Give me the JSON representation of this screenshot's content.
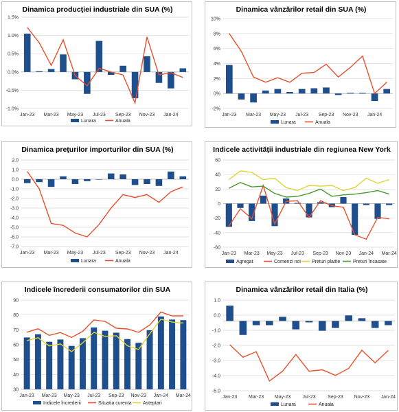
{
  "colors": {
    "bar": "#1f4e8c",
    "red": "#e8502d",
    "green": "#4a9a2e",
    "yellow": "#e4d23a",
    "grid": "#d9d9d9"
  },
  "chart_data": [
    {
      "type": "bar",
      "title": "Dinamica producţiei industriale din SUA (%)",
      "categories": [
        "Jan-23",
        "Feb-23",
        "Mar-23",
        "Apr-23",
        "May-23",
        "Jun-23",
        "Jul-23",
        "Aug-23",
        "Sep-23",
        "Oct-23",
        "Nov-23",
        "Dec-23",
        "Jan-24",
        "Feb-24"
      ],
      "x_tick_labels": [
        "Jan-23",
        "Mar-23",
        "May-23",
        "Jul-23",
        "Sep-23",
        "Nov-23",
        "Jan-24"
      ],
      "ylim": [
        -1.0,
        1.5
      ],
      "y_ticks": [
        "-1.0%",
        "-0.5%",
        "0.0%",
        "0.5%",
        "1.0%",
        "1.5%"
      ],
      "legend": "bottom",
      "series": [
        {
          "name": "Lunara",
          "kind": "bar",
          "color": "bar",
          "values": [
            1.05,
            0.02,
            0.08,
            0.48,
            -0.2,
            -0.6,
            0.85,
            -0.08,
            0.17,
            -0.72,
            0.43,
            -0.3,
            -0.45,
            0.1
          ]
        },
        {
          "name": "Anuala",
          "kind": "line",
          "color": "red",
          "values": [
            1.22,
            0.8,
            0.18,
            0.88,
            -0.1,
            -0.38,
            0.1,
            0.0,
            -0.08,
            -0.85,
            0.96,
            -0.08,
            -0.02,
            -0.15
          ]
        }
      ]
    },
    {
      "type": "bar",
      "title": "Dinamica vânzărilor retail din SUA (%)",
      "categories": [
        "Jan-23",
        "Feb-23",
        "Mar-23",
        "Apr-23",
        "May-23",
        "Jun-23",
        "Jul-23",
        "Aug-23",
        "Sep-23",
        "Oct-23",
        "Nov-23",
        "Dec-23",
        "Jan-24",
        "Feb-24"
      ],
      "x_tick_labels": [
        "Jan-23",
        "Mar-23",
        "May-23",
        "Jul-23",
        "Sep-23",
        "Nov-23",
        "Jan-24"
      ],
      "ylim": [
        -2,
        10
      ],
      "y_ticks": [
        "-2%",
        "0%",
        "2%",
        "4%",
        "6%",
        "8%",
        "10%"
      ],
      "legend": "bottom",
      "series": [
        {
          "name": "Lunara",
          "kind": "bar",
          "color": "bar",
          "values": [
            3.8,
            -0.8,
            -1.2,
            0.4,
            0.6,
            0.2,
            0.6,
            0.7,
            0.8,
            -0.2,
            0.1,
            0.1,
            -1.0,
            0.6
          ]
        },
        {
          "name": "Anuala",
          "kind": "line",
          "color": "red",
          "values": [
            8.0,
            5.6,
            2.2,
            1.5,
            2.1,
            1.5,
            2.7,
            2.8,
            3.9,
            2.2,
            3.5,
            5.0,
            0.0,
            1.5
          ]
        }
      ]
    },
    {
      "type": "bar",
      "title": "Dinamica preţurilor importurilor din SUA (%)",
      "categories": [
        "Jan-23",
        "Feb-23",
        "Mar-23",
        "Apr-23",
        "May-23",
        "Jun-23",
        "Jul-23",
        "Aug-23",
        "Sep-23",
        "Oct-23",
        "Nov-23",
        "Dec-23",
        "Jan-24",
        "Feb-24"
      ],
      "x_tick_labels": [
        "Jan-23",
        "Mar-23",
        "May-23",
        "Jul-23",
        "Sep-23",
        "Nov-23",
        "Jan-24"
      ],
      "ylim": [
        -7.0,
        2.0
      ],
      "y_ticks": [
        "-7.0",
        "-6.0",
        "-5.0",
        "-4.0",
        "-3.0",
        "-2.0",
        "-1.0",
        "0.0",
        "1.0",
        "2.0"
      ],
      "legend": "bottom",
      "series": [
        {
          "name": "Lunara",
          "kind": "bar",
          "color": "bar",
          "values": [
            -0.4,
            -0.3,
            -0.8,
            0.3,
            -0.5,
            -0.2,
            0.0,
            0.6,
            0.5,
            -0.6,
            -0.5,
            -0.7,
            0.8,
            0.3
          ]
        },
        {
          "name": "Anuala",
          "kind": "line",
          "color": "red",
          "values": [
            0.8,
            -1.0,
            -4.6,
            -4.8,
            -5.6,
            -6.0,
            -4.7,
            -3.0,
            -1.6,
            -1.9,
            -1.6,
            -2.4,
            -1.3,
            -0.8
          ]
        }
      ]
    },
    {
      "type": "bar",
      "title": "Indicele activităţii industriale din regiunea New York",
      "categories": [
        "Jan-23",
        "Feb-23",
        "Mar-23",
        "Apr-23",
        "May-23",
        "Jun-23",
        "Jul-23",
        "Aug-23",
        "Sep-23",
        "Oct-23",
        "Nov-23",
        "Dec-23",
        "Jan-24",
        "Feb-24",
        "Mar-24"
      ],
      "x_tick_labels": [
        "Jan-23",
        "Mar-23",
        "May-23",
        "Jul-23",
        "Sep-23",
        "Nov-23",
        "Jan-24",
        "Mar-24"
      ],
      "ylim": [
        -60,
        60
      ],
      "y_ticks": [
        "-60",
        "-40",
        "-20",
        "0",
        "20",
        "40",
        "60"
      ],
      "legend": "bottom",
      "series": [
        {
          "name": "Agregat",
          "kind": "bar",
          "color": "bar",
          "values": [
            -32,
            -6,
            -24,
            11,
            -31,
            7,
            1,
            -19,
            2,
            -5,
            9,
            -43,
            -2,
            -21,
            -2
          ]
        },
        {
          "name": "Comenzi noi",
          "kind": "line",
          "color": "red",
          "values": [
            -31,
            -7,
            -21,
            25,
            -28,
            3,
            4,
            -19,
            4,
            -3,
            -5,
            -43,
            -49,
            -19,
            -21
          ]
        },
        {
          "name": "Preturi platite",
          "kind": "line",
          "color": "yellow",
          "values": [
            33,
            45,
            43,
            33,
            35,
            22,
            18,
            25,
            24,
            25,
            18,
            22,
            35,
            28,
            33
          ]
        },
        {
          "name": "Preturi încasate",
          "kind": "line",
          "color": "green",
          "values": [
            21,
            29,
            23,
            24,
            14,
            9,
            10,
            14,
            20,
            10,
            12,
            13,
            15,
            18,
            13
          ]
        }
      ]
    },
    {
      "type": "bar",
      "title": "Indicele încrederii consumatorilor din SUA",
      "categories": [
        "Jan-23",
        "Feb-23",
        "Mar-23",
        "Apr-23",
        "May-23",
        "Jun-23",
        "Jul-23",
        "Aug-23",
        "Sep-23",
        "Oct-23",
        "Nov-23",
        "Dec-23",
        "Jan-24",
        "Feb-24",
        "Mar-24"
      ],
      "x_tick_labels": [
        "Jan-23",
        "Mar-23",
        "May-23",
        "Jul-23",
        "Sep-23",
        "Nov-23",
        "Jan-24",
        "Mar-24"
      ],
      "ylim": [
        30,
        90
      ],
      "y_ticks": [
        "30",
        "40",
        "50",
        "60",
        "70",
        "80",
        "90"
      ],
      "legend": "bottom",
      "series": [
        {
          "name": "Indicele încrederii",
          "kind": "bar",
          "color": "bar",
          "values": [
            64.9,
            67.0,
            62.0,
            63.5,
            59.2,
            64.4,
            71.6,
            69.4,
            68.1,
            63.8,
            61.3,
            69.7,
            79.0,
            76.9,
            76.5
          ]
        },
        {
          "name": "Situatia curenta",
          "kind": "line",
          "color": "red",
          "values": [
            68.4,
            70.7,
            66.3,
            68.2,
            64.9,
            69.0,
            76.6,
            75.7,
            71.1,
            70.6,
            68.3,
            73.3,
            81.9,
            79.4,
            79.4
          ]
        },
        {
          "name": "Asteptari",
          "kind": "line",
          "color": "yellow",
          "values": [
            62.7,
            64.7,
            59.2,
            60.5,
            55.4,
            61.3,
            68.3,
            65.6,
            66.0,
            59.3,
            56.8,
            67.4,
            77.1,
            75.2,
            74.6
          ]
        }
      ]
    },
    {
      "type": "bar",
      "title": "Dinamica vânzărilor retail din Italia (%)",
      "categories": [
        "Jan-23",
        "Feb-23",
        "Mar-23",
        "Apr-23",
        "May-23",
        "Jun-23",
        "Jul-23",
        "Aug-23",
        "Sep-23",
        "Oct-23",
        "Nov-23",
        "Dec-23",
        "Jan-24"
      ],
      "x_tick_labels": [
        "Jan-23",
        "Mar-23",
        "May-23",
        "Jul-23",
        "Sep-23",
        "Nov-23",
        "Jan-24"
      ],
      "ylim": [
        -5.0,
        1.5
      ],
      "y_ticks": [
        "-5.0",
        "-4.0",
        "-3.0",
        "-2.0",
        "-1.0",
        "0.0",
        "1.0"
      ],
      "legend": "bottom",
      "series": [
        {
          "name": "Lunara",
          "kind": "bar",
          "color": "bar",
          "values": [
            1.1,
            -1.0,
            -0.3,
            -0.3,
            0.3,
            -0.6,
            -0.1,
            -0.7,
            -0.5,
            0.4,
            0.2,
            -0.5,
            -0.3
          ]
        },
        {
          "name": "Anuala",
          "kind": "line",
          "color": "red",
          "values": [
            -1.7,
            -2.6,
            -2.2,
            -4.3,
            -3.6,
            -2.4,
            -3.6,
            -3.5,
            -3.9,
            -3.4,
            -2.1,
            -3.0,
            -2.1
          ]
        }
      ]
    }
  ]
}
